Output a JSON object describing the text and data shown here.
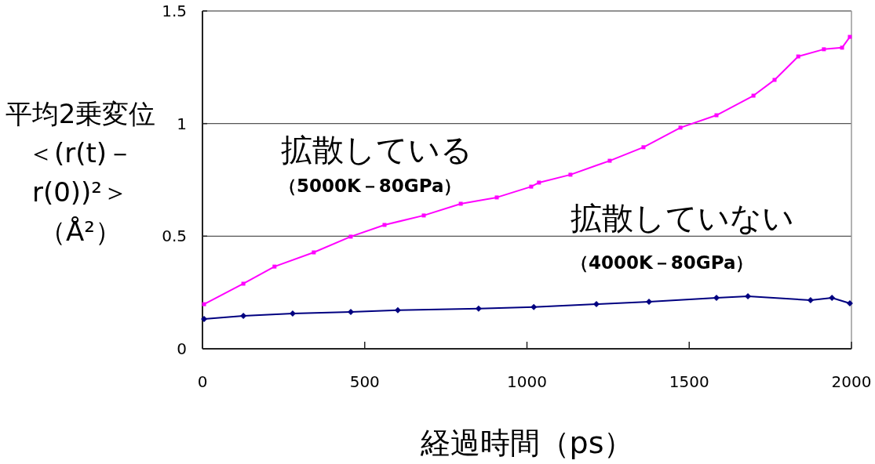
{
  "chart_data": {
    "type": "line",
    "xlabel": "経過時間（ps）",
    "ylabel": "平均2乗変位＜(r(t)－r(0))²＞（Å²）",
    "annotations": [
      "拡散している",
      "（5000K－80GPa）",
      "拡散していない",
      "（4000K－80GPa）"
    ],
    "xlim": [
      0,
      2000
    ],
    "ylim": [
      0,
      1.5
    ],
    "xticks": [
      0,
      500,
      1000,
      1500,
      2000
    ],
    "yticks": [
      0,
      0.5,
      1,
      1.5
    ],
    "grid": "y",
    "series": [
      {
        "color": "#ff00ff",
        "marker": "square",
        "x": [
          5,
          126,
          222,
          343,
          457,
          561,
          682,
          796,
          907,
          1013,
          1037,
          1134,
          1255,
          1359,
          1473,
          1584,
          1698,
          1763,
          1836,
          1915,
          1971,
          1995
        ],
        "values": [
          0.198,
          0.289,
          0.365,
          0.428,
          0.498,
          0.55,
          0.592,
          0.644,
          0.672,
          0.72,
          0.738,
          0.773,
          0.835,
          0.895,
          0.982,
          1.037,
          1.124,
          1.194,
          1.298,
          1.33,
          1.337,
          1.385
        ]
      },
      {
        "color": "#000080",
        "marker": "diamond",
        "x": [
          5,
          126,
          278,
          457,
          602,
          851,
          1021,
          1214,
          1376,
          1584,
          1681,
          1874,
          1940,
          1995
        ],
        "values": [
          0.132,
          0.146,
          0.157,
          0.164,
          0.171,
          0.178,
          0.185,
          0.198,
          0.209,
          0.226,
          0.233,
          0.216,
          0.226,
          0.202
        ]
      }
    ]
  }
}
